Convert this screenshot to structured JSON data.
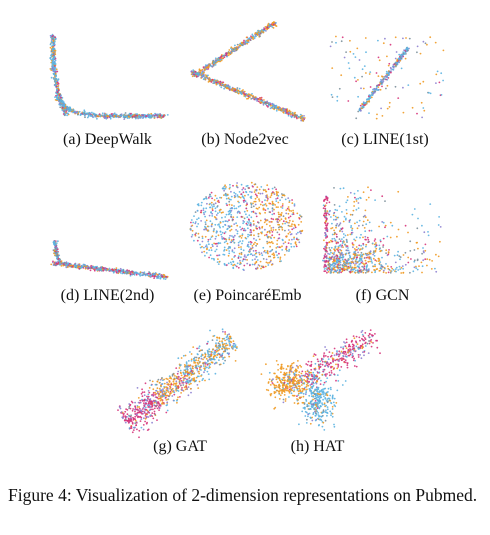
{
  "palette": {
    "blue": "#5bb3e1",
    "orange": "#f09a22",
    "magenta": "#d6337a",
    "purple": "#8d7fd0",
    "slate": "#7a8e99"
  },
  "figure": {
    "caption": "Figure 4: Visualization of 2-dimension representations on Pubmed."
  },
  "panels": [
    {
      "id": "deepwalk",
      "caption": "(a)  DeepWalk",
      "method": "DeepWalk"
    },
    {
      "id": "node2vec",
      "caption": "(b)  Node2vec",
      "method": "Node2vec"
    },
    {
      "id": "line1",
      "caption": "(c)  LINE(1st)",
      "method": "LINE(1st)"
    },
    {
      "id": "line2",
      "caption": "(d)  LINE(2nd)",
      "method": "LINE(2nd)"
    },
    {
      "id": "poincare",
      "caption": "(e)  PoincaréEmb",
      "method": "PoincaréEmb"
    },
    {
      "id": "gcn",
      "caption": "(f)  GCN",
      "method": "GCN"
    },
    {
      "id": "gat",
      "caption": "(g)  GAT",
      "method": "GAT"
    },
    {
      "id": "hat",
      "caption": "(h)  HAT",
      "method": "HAT"
    }
  ]
}
